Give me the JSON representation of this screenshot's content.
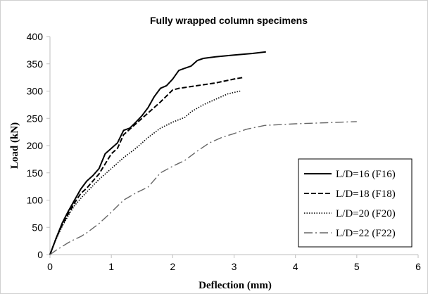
{
  "chart_data": {
    "type": "line",
    "title": "Fully wrapped column specimens",
    "xlabel": "Deflection  (mm)",
    "ylabel": "Load (kN)",
    "xlim": [
      0,
      6
    ],
    "ylim": [
      0,
      400
    ],
    "xticks": [
      "0",
      "1",
      "2",
      "3",
      "4",
      "5",
      "6"
    ],
    "yticks": [
      "0",
      "50",
      "100",
      "150",
      "200",
      "250",
      "300",
      "350",
      "400"
    ],
    "grid": false,
    "legend_position": "bottom-right",
    "series": [
      {
        "name": "L/D=16  (F16)",
        "color": "#000000",
        "dash": "solid",
        "x": [
          0,
          0.1,
          0.2,
          0.3,
          0.4,
          0.5,
          0.6,
          0.7,
          0.8,
          0.9,
          1.0,
          1.1,
          1.2,
          1.3,
          1.4,
          1.5,
          1.6,
          1.7,
          1.8,
          1.9,
          2.0,
          2.1,
          2.2,
          2.3,
          2.4,
          2.5,
          2.7,
          3.0,
          3.3,
          3.52
        ],
        "y": [
          0,
          30,
          58,
          80,
          100,
          120,
          135,
          145,
          158,
          185,
          195,
          205,
          228,
          232,
          243,
          255,
          270,
          290,
          305,
          310,
          322,
          338,
          342,
          346,
          356,
          360,
          363,
          366,
          369,
          372
        ]
      },
      {
        "name": "L/D=18  (F18)",
        "color": "#000000",
        "dash": "dashed",
        "x": [
          0,
          0.1,
          0.2,
          0.3,
          0.4,
          0.5,
          0.6,
          0.8,
          1.0,
          1.1,
          1.2,
          1.4,
          1.6,
          1.8,
          2.0,
          2.1,
          2.4,
          2.7,
          3.0,
          3.15
        ],
        "y": [
          0,
          30,
          55,
          75,
          95,
          112,
          122,
          148,
          185,
          195,
          220,
          240,
          260,
          280,
          302,
          305,
          310,
          315,
          322,
          325
        ]
      },
      {
        "name": "L/D=20  (F20)",
        "color": "#000000",
        "dash": "dotted",
        "x": [
          0,
          0.1,
          0.2,
          0.3,
          0.4,
          0.5,
          0.6,
          0.8,
          1.0,
          1.2,
          1.4,
          1.6,
          1.8,
          2.0,
          2.2,
          2.3,
          2.5,
          2.7,
          2.9,
          3.1
        ],
        "y": [
          0,
          28,
          52,
          72,
          90,
          103,
          115,
          138,
          158,
          178,
          195,
          215,
          232,
          243,
          252,
          262,
          275,
          285,
          295,
          300
        ]
      },
      {
        "name": "L/D=22  (F22)",
        "color": "#000000",
        "dash": "dashdot",
        "x": [
          0,
          0.1,
          0.2,
          0.3,
          0.4,
          0.5,
          0.6,
          0.8,
          1.0,
          1.2,
          1.4,
          1.6,
          1.8,
          2.0,
          2.2,
          2.4,
          2.6,
          2.8,
          3.0,
          3.2,
          3.5,
          4.0,
          4.5,
          5.0
        ],
        "y": [
          0,
          8,
          15,
          22,
          28,
          33,
          40,
          57,
          78,
          100,
          113,
          124,
          150,
          162,
          173,
          190,
          205,
          215,
          222,
          230,
          237,
          240,
          242,
          244
        ]
      }
    ]
  }
}
